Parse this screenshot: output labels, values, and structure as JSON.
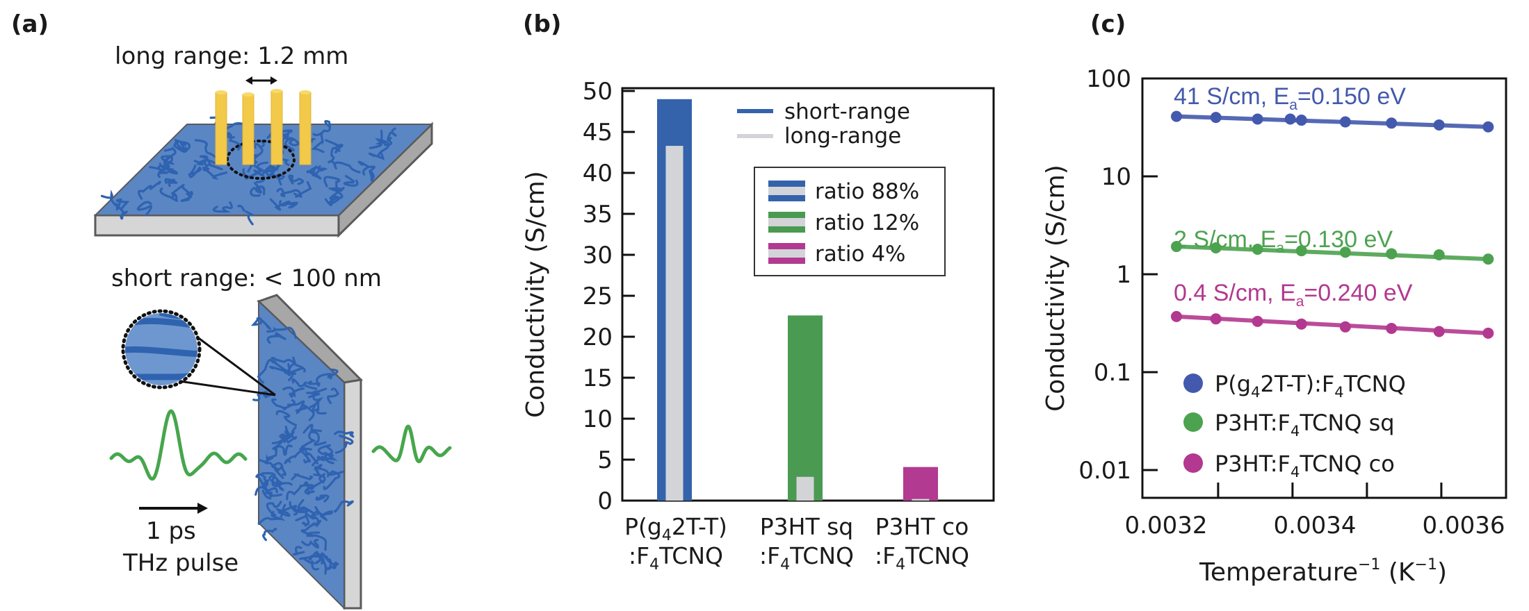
{
  "panels": {
    "a": {
      "label": "(a)",
      "long_range_label": "long range:  1.2 mm",
      "short_range_label": "short range: < 100 nm",
      "pulse_time_label": "1 ps",
      "pulse_label": "THz pulse",
      "colors": {
        "film": "#5b86c4",
        "chains": "#2f63b0",
        "substrate": "#d3d3d3",
        "edge": "#5a5a5a",
        "needle": "#f3c94a",
        "wave": "#46a64c"
      }
    },
    "b": {
      "label": "(b)"
    },
    "c": {
      "label": "(c)"
    }
  },
  "chart_data": [
    {
      "type": "bar",
      "title": "",
      "xlabel": "",
      "ylabel": "Conductivity (S/cm)",
      "ylim": [
        0,
        50
      ],
      "yticks": [
        0,
        5,
        10,
        15,
        20,
        25,
        30,
        35,
        40,
        45,
        50
      ],
      "categories": [
        {
          "line1": "P(g",
          "sub1": "4",
          "rest1": "2T-T)",
          "line2": ":F",
          "sub2": "4",
          "rest2": "TCNQ",
          "full": "P(g4 2T-T):F4TCNQ"
        },
        {
          "line1": "P3HT sq",
          "sub1": "",
          "rest1": "",
          "line2": ":F",
          "sub2": "4",
          "rest2": "TCNQ",
          "full": "P3HT sq:F4TCNQ"
        },
        {
          "line1": "P3HT co",
          "sub1": "",
          "rest1": "",
          "line2": ":F",
          "sub2": "4",
          "rest2": "TCNQ",
          "full": "P3HT co:F4TCNQ"
        }
      ],
      "series": [
        {
          "name": "short-range",
          "values": [
            49.0,
            22.6,
            4.1
          ],
          "colors": [
            "#3463ac",
            "#4b9a52",
            "#b23a90"
          ]
        },
        {
          "name": "long-range",
          "values": [
            43.3,
            2.9,
            0.2
          ],
          "color": "#d3d4d8"
        }
      ],
      "legend": {
        "position": "top-right",
        "entries": [
          {
            "label": "short-range",
            "color": "#3463ac"
          },
          {
            "label": "long-range",
            "color": "#d3d4d8"
          }
        ],
        "ratio_entries": [
          {
            "label": "ratio 88%",
            "color": "#3463ac"
          },
          {
            "label": "ratio 12%",
            "color": "#4b9a52"
          },
          {
            "label": "ratio 4%",
            "color": "#b23a90"
          }
        ]
      },
      "grid": false
    },
    {
      "type": "scatter",
      "title": "",
      "xlabel": "Temperature⁻¹ (K⁻¹)",
      "ylabel": "Conductivity (S/cm)",
      "yscale": "log",
      "ylim": [
        0.005,
        100
      ],
      "yticks": [
        {
          "v": 100,
          "label": "100"
        },
        {
          "v": 10,
          "label": "10"
        },
        {
          "v": 1,
          "label": "1"
        },
        {
          "v": 0.1,
          "label": "0.1"
        },
        {
          "v": 0.01,
          "label": "0.01"
        }
      ],
      "xlim": [
        0.00316,
        0.00368
      ],
      "xtick_labels": [
        {
          "v": 0.0032,
          "label": "0.0032"
        },
        {
          "v": 0.0034,
          "label": "0.0034"
        },
        {
          "v": 0.0036,
          "label": "0.0036"
        }
      ],
      "xtick_marks": [
        0.00327,
        0.00337,
        0.00347,
        0.00357
      ],
      "series": [
        {
          "name": "P(g₄2T-T):F₄TCNQ",
          "legend_parts": [
            "P(g",
            "4",
            "2T-T):F",
            "4",
            "TCNQ"
          ],
          "color": "#4359ad",
          "annotation": {
            "pre": "41 S/cm, E",
            "sub": "a",
            "post": "=0.150 eV"
          },
          "x": [
            0.003214,
            0.003267,
            0.003323,
            0.003367,
            0.003382,
            0.003441,
            0.003503,
            0.003567,
            0.003633
          ],
          "y": [
            41.0,
            40.0,
            38.5,
            38.5,
            37.5,
            36.0,
            35.0,
            33.5,
            32.0
          ]
        },
        {
          "name": "P3HT:F₄TCNQ sq",
          "legend_parts": [
            "P3HT:F",
            "4",
            "TCNQ sq",
            "",
            ""
          ],
          "color": "#4ca24f",
          "annotation": {
            "pre": "2 S/cm, E",
            "sub": "a",
            "post": "=0.130 eV"
          },
          "x": [
            0.003214,
            0.003267,
            0.003323,
            0.003382,
            0.003441,
            0.003503,
            0.003567,
            0.003633
          ],
          "y": [
            1.92,
            1.86,
            1.8,
            1.74,
            1.68,
            1.62,
            1.58,
            1.43
          ]
        },
        {
          "name": "P3HT:F₄TCNQ co",
          "legend_parts": [
            "P3HT:F",
            "4",
            "TCNQ co",
            "",
            ""
          ],
          "color": "#b3388f",
          "annotation": {
            "pre": "0.4 S/cm, E",
            "sub": "a",
            "post": "=0.240 eV"
          },
          "x": [
            0.003214,
            0.003267,
            0.003323,
            0.003382,
            0.003441,
            0.003503,
            0.003567,
            0.003633
          ],
          "y": [
            0.37,
            0.35,
            0.33,
            0.31,
            0.29,
            0.28,
            0.26,
            0.25
          ]
        }
      ],
      "legend": {
        "position": "bottom-left"
      },
      "grid": false
    }
  ]
}
